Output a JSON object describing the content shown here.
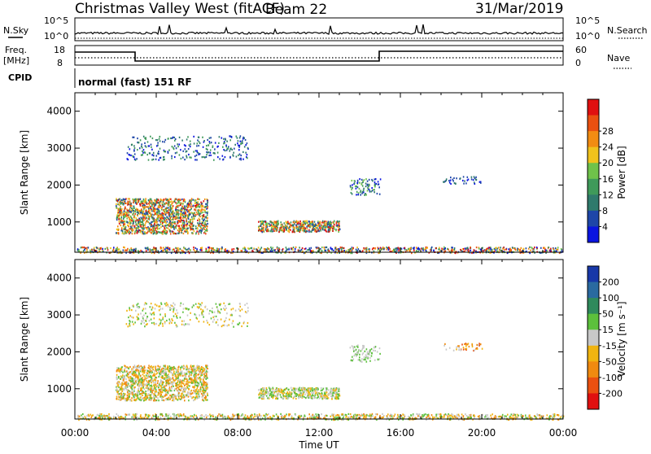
{
  "header": {
    "station_title": "Christmas Valley West (fitACF)",
    "beam": "Beam 22",
    "date": "31/Mar/2019"
  },
  "status_panel": {
    "nsky_label": "N.Sky",
    "nsearch_label": "N.Search",
    "left_ticks": [
      "10^5",
      "10^0"
    ],
    "right_ticks": [
      "10^5",
      "10^0"
    ],
    "freq_label_1": "Freq.",
    "freq_label_2": "[MHz]",
    "freq_ticks": [
      "18",
      "8"
    ],
    "nave_label": "Nave",
    "nave_ticks": [
      "60",
      "0"
    ],
    "cpid_label": "CPID",
    "cpid_text": "normal (fast) 151 RF"
  },
  "chart_data": [
    {
      "type": "heatmap",
      "title": "",
      "ylabel": "Slant Range [km]",
      "xlabel": "Time UT",
      "x_ticks": [
        "00:00",
        "04:00",
        "08:00",
        "12:00",
        "16:00",
        "20:00",
        "00:00"
      ],
      "x_range_hours": [
        0,
        24
      ],
      "y_ticks": [
        1000,
        2000,
        3000,
        4000
      ],
      "y_range_km": [
        180,
        4500
      ],
      "colorbar": {
        "label": "Power [dB]",
        "ticks": [
          "4",
          "8",
          "12",
          "16",
          "20",
          "24",
          "28"
        ],
        "colors": [
          "#0a14e0",
          "#1e46a8",
          "#2f7a6c",
          "#3f9a5a",
          "#6fc24a",
          "#f0c21c",
          "#f28c12",
          "#ea5010",
          "#e01010"
        ]
      },
      "scatter_regions": [
        {
          "t": [
            0.1,
            24
          ],
          "r": [
            180,
            340
          ],
          "level": [
            0,
            8
          ],
          "n": 900
        },
        {
          "t": [
            2.0,
            6.5
          ],
          "r": [
            700,
            1650
          ],
          "level": [
            1,
            8
          ],
          "n": 1400
        },
        {
          "t": [
            9.0,
            13.0
          ],
          "r": [
            750,
            1050
          ],
          "level": [
            1,
            8
          ],
          "n": 500
        },
        {
          "t": [
            2.5,
            8.5
          ],
          "r": [
            2700,
            3350
          ],
          "level": [
            0,
            3
          ],
          "n": 280
        },
        {
          "t": [
            13.5,
            15.0
          ],
          "r": [
            1750,
            2200
          ],
          "level": [
            0,
            4
          ],
          "n": 90
        },
        {
          "t": [
            18.0,
            20.0
          ],
          "r": [
            2050,
            2250
          ],
          "level": [
            0,
            2
          ],
          "n": 40
        }
      ]
    },
    {
      "type": "heatmap",
      "title": "",
      "ylabel": "Slant Range [km]",
      "xlabel": "Time UT",
      "x_ticks": [
        "00:00",
        "04:00",
        "08:00",
        "12:00",
        "16:00",
        "20:00",
        "00:00"
      ],
      "x_range_hours": [
        0,
        24
      ],
      "y_ticks": [
        1000,
        2000,
        3000,
        4000
      ],
      "y_range_km": [
        180,
        4500
      ],
      "colorbar": {
        "label": "Velocity [m s⁻¹]",
        "ticks": [
          "200",
          "100",
          "50",
          "15",
          "-15",
          "-50",
          "-100",
          "-200"
        ],
        "colors": [
          "#1838a8",
          "#2a6aa0",
          "#2f8a5c",
          "#5cc03c",
          "#c8c8c8",
          "#f0b410",
          "#f08a10",
          "#ea5010",
          "#e01010"
        ]
      },
      "scatter_regions": [
        {
          "t": [
            0.1,
            24
          ],
          "r": [
            180,
            340
          ],
          "level": [
            3,
            6
          ],
          "n": 900
        },
        {
          "t": [
            2.0,
            6.5
          ],
          "r": [
            700,
            1650
          ],
          "level": [
            3,
            6
          ],
          "n": 1400
        },
        {
          "t": [
            9.0,
            13.0
          ],
          "r": [
            750,
            1050
          ],
          "level": [
            3,
            5
          ],
          "n": 500
        },
        {
          "t": [
            2.5,
            8.5
          ],
          "r": [
            2700,
            3350
          ],
          "level": [
            3,
            5
          ],
          "n": 280
        },
        {
          "t": [
            13.5,
            15.0
          ],
          "r": [
            1750,
            2200
          ],
          "level": [
            3,
            4
          ],
          "n": 90
        },
        {
          "t": [
            18.0,
            20.0
          ],
          "r": [
            2050,
            2250
          ],
          "level": [
            4,
            7
          ],
          "n": 40
        }
      ]
    }
  ]
}
